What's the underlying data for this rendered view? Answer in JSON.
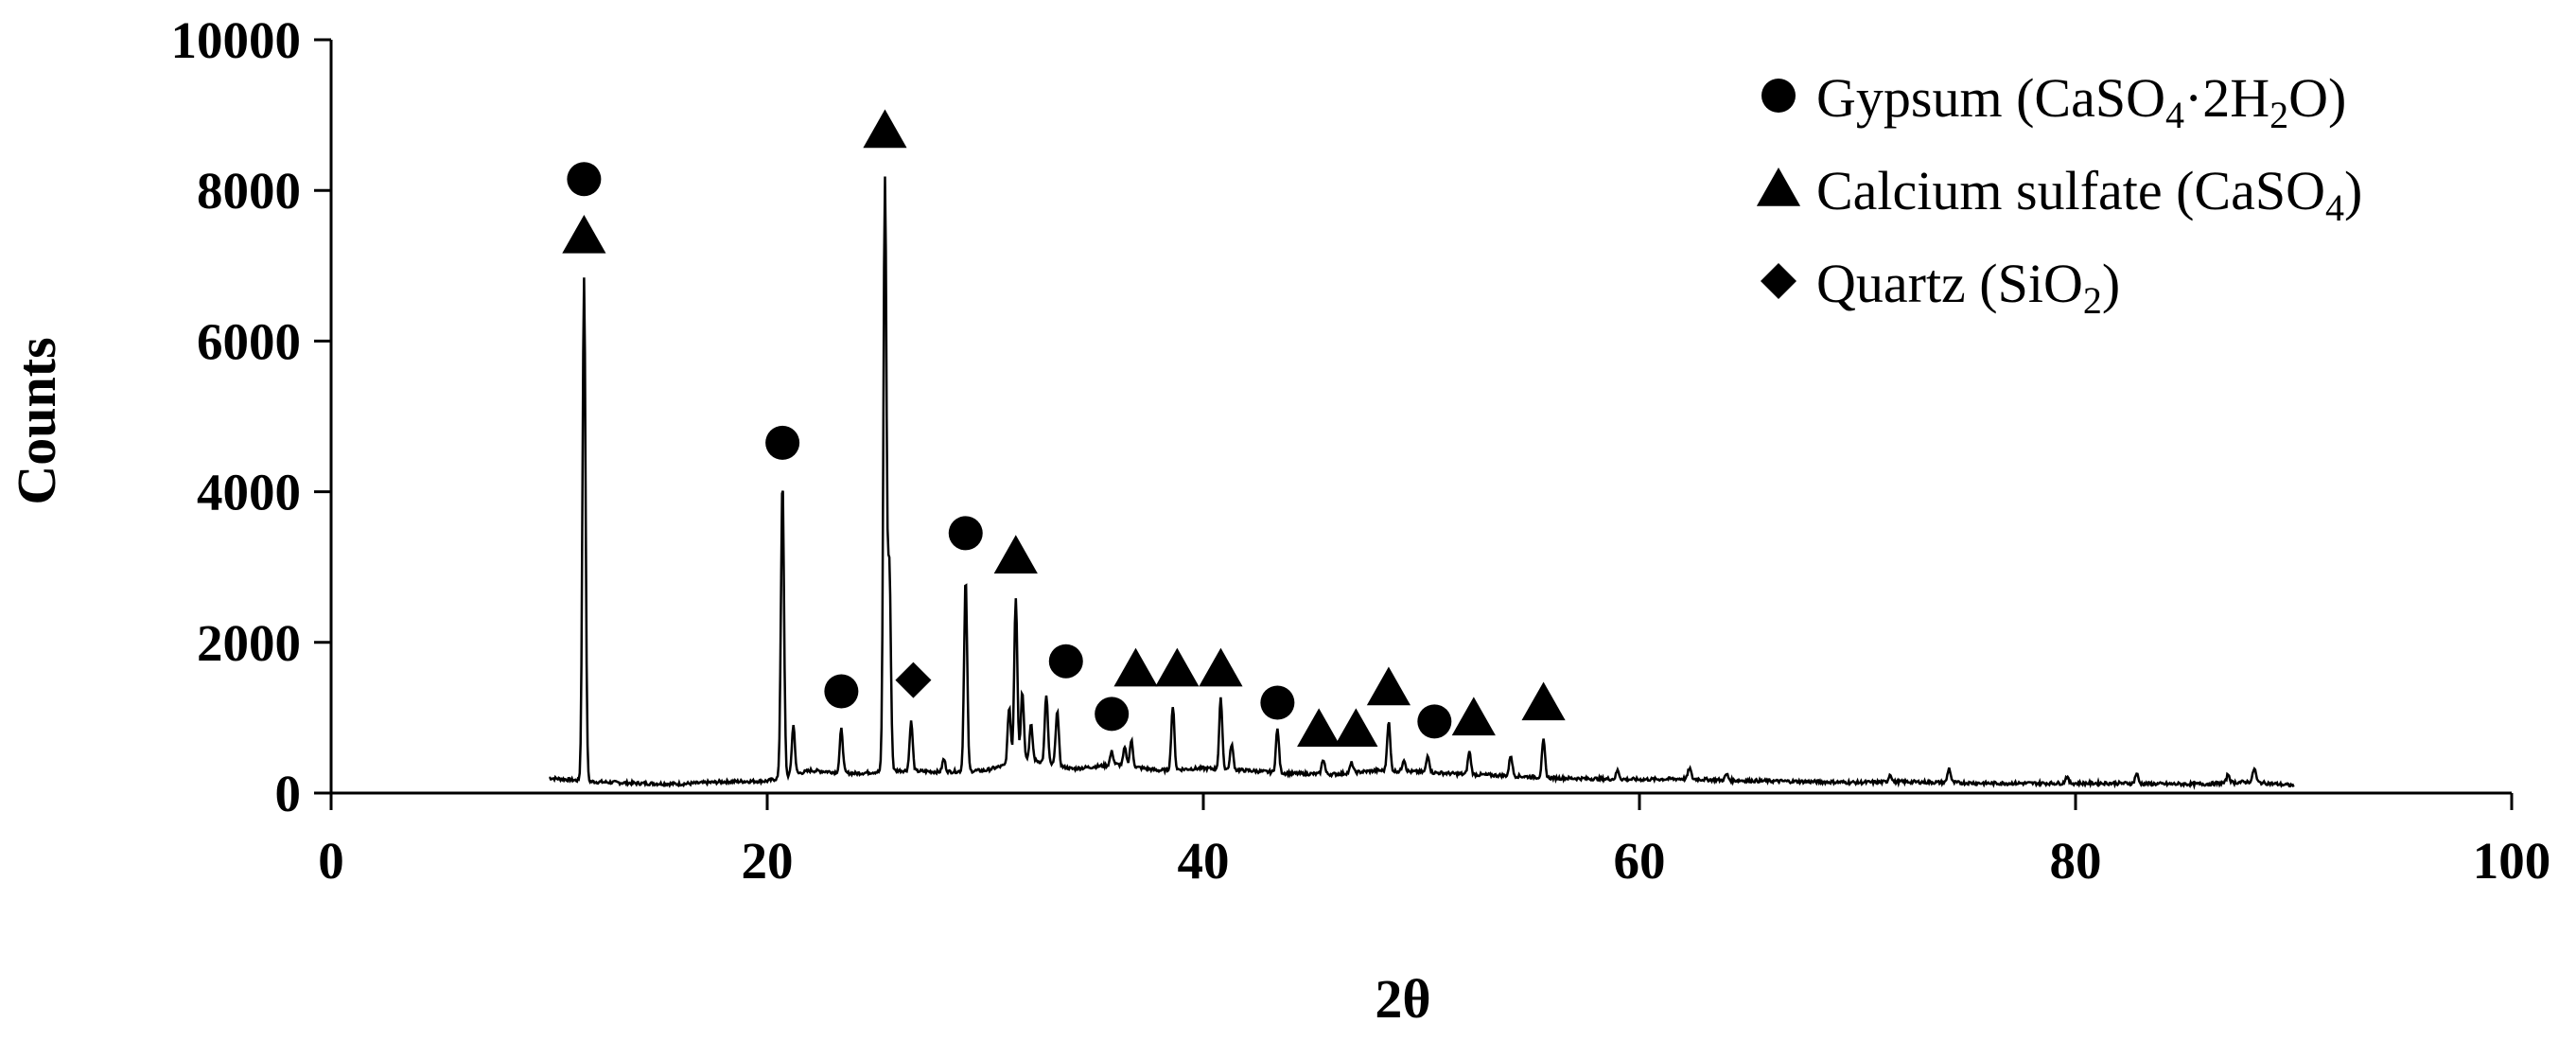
{
  "chart_data": {
    "type": "line",
    "title": "",
    "xlabel": "2θ",
    "ylabel": "Counts",
    "xlim": [
      0,
      100
    ],
    "ylim": [
      0,
      10000
    ],
    "x_ticks": [
      0,
      20,
      40,
      60,
      80,
      100
    ],
    "y_ticks": [
      0,
      2000,
      4000,
      6000,
      8000,
      10000
    ],
    "grid": false,
    "legend_position": "top-right",
    "line_color": "#000000",
    "baseline": [
      [
        10,
        200
      ],
      [
        12,
        150
      ],
      [
        14,
        130
      ],
      [
        16,
        120
      ],
      [
        18,
        150
      ],
      [
        20,
        160
      ],
      [
        22,
        300
      ],
      [
        24,
        260
      ],
      [
        26,
        300
      ],
      [
        28,
        280
      ],
      [
        30,
        300
      ],
      [
        32,
        450
      ],
      [
        34,
        320
      ],
      [
        36,
        380
      ],
      [
        38,
        300
      ],
      [
        40,
        330
      ],
      [
        42,
        300
      ],
      [
        44,
        260
      ],
      [
        46,
        250
      ],
      [
        48,
        300
      ],
      [
        50,
        280
      ],
      [
        52,
        250
      ],
      [
        54,
        230
      ],
      [
        56,
        200
      ],
      [
        58,
        190
      ],
      [
        60,
        180
      ],
      [
        62,
        190
      ],
      [
        64,
        170
      ],
      [
        66,
        160
      ],
      [
        68,
        150
      ],
      [
        70,
        140
      ],
      [
        72,
        150
      ],
      [
        74,
        140
      ],
      [
        76,
        130
      ],
      [
        78,
        130
      ],
      [
        80,
        130
      ],
      [
        82,
        130
      ],
      [
        84,
        120
      ],
      [
        86,
        120
      ],
      [
        88,
        150
      ],
      [
        90,
        100
      ]
    ],
    "peaks": [
      {
        "x": 11.6,
        "y": 6850
      },
      {
        "x": 20.7,
        "y": 4150
      },
      {
        "x": 21.2,
        "y": 900
      },
      {
        "x": 23.4,
        "y": 850
      },
      {
        "x": 25.4,
        "y": 8150
      },
      {
        "x": 25.6,
        "y": 3000
      },
      {
        "x": 26.6,
        "y": 950
      },
      {
        "x": 28.1,
        "y": 450
      },
      {
        "x": 29.1,
        "y": 2850
      },
      {
        "x": 31.1,
        "y": 1150
      },
      {
        "x": 31.4,
        "y": 2600
      },
      {
        "x": 31.7,
        "y": 1350
      },
      {
        "x": 32.1,
        "y": 900
      },
      {
        "x": 32.8,
        "y": 1300
      },
      {
        "x": 33.3,
        "y": 1100
      },
      {
        "x": 35.8,
        "y": 550
      },
      {
        "x": 36.4,
        "y": 600
      },
      {
        "x": 36.7,
        "y": 700
      },
      {
        "x": 38.6,
        "y": 1150
      },
      {
        "x": 40.8,
        "y": 1250
      },
      {
        "x": 41.3,
        "y": 650
      },
      {
        "x": 43.4,
        "y": 850
      },
      {
        "x": 45.5,
        "y": 450
      },
      {
        "x": 46.8,
        "y": 400
      },
      {
        "x": 48.5,
        "y": 950
      },
      {
        "x": 49.2,
        "y": 450
      },
      {
        "x": 50.3,
        "y": 500
      },
      {
        "x": 52.2,
        "y": 550
      },
      {
        "x": 54.1,
        "y": 500
      },
      {
        "x": 55.6,
        "y": 700
      },
      {
        "x": 59.0,
        "y": 300
      },
      {
        "x": 62.3,
        "y": 330
      },
      {
        "x": 64.0,
        "y": 250
      },
      {
        "x": 71.5,
        "y": 250
      },
      {
        "x": 74.2,
        "y": 330
      },
      {
        "x": 79.6,
        "y": 220
      },
      {
        "x": 82.8,
        "y": 260
      },
      {
        "x": 87.0,
        "y": 250
      },
      {
        "x": 88.2,
        "y": 330
      }
    ],
    "legend": [
      {
        "marker": "circle",
        "label": "Gypsum (CaSO",
        "sub1": "4",
        "mid": "·2H",
        "sub2": "2",
        "tail": "O)"
      },
      {
        "marker": "triangle",
        "label": "Calcium sulfate (CaSO",
        "sub1": "4",
        "mid": ")",
        "sub2": "",
        "tail": ""
      },
      {
        "marker": "diamond",
        "label": "Quartz (SiO",
        "sub1": "2",
        "mid": ")",
        "sub2": "",
        "tail": ""
      }
    ],
    "annotations": [
      {
        "marker": "circle",
        "x": 11.6,
        "y": 8150
      },
      {
        "marker": "triangle",
        "x": 11.6,
        "y": 7400
      },
      {
        "marker": "circle",
        "x": 20.7,
        "y": 4650
      },
      {
        "marker": "circle",
        "x": 23.4,
        "y": 1350
      },
      {
        "marker": "triangle",
        "x": 25.4,
        "y": 8800
      },
      {
        "marker": "diamond",
        "x": 26.7,
        "y": 1500
      },
      {
        "marker": "circle",
        "x": 29.1,
        "y": 3450
      },
      {
        "marker": "triangle",
        "x": 31.4,
        "y": 3150
      },
      {
        "marker": "circle",
        "x": 33.7,
        "y": 1750
      },
      {
        "marker": "circle",
        "x": 35.8,
        "y": 1050
      },
      {
        "marker": "triangle",
        "x": 36.9,
        "y": 1650
      },
      {
        "marker": "triangle",
        "x": 38.8,
        "y": 1650
      },
      {
        "marker": "triangle",
        "x": 40.8,
        "y": 1650
      },
      {
        "marker": "circle",
        "x": 43.4,
        "y": 1200
      },
      {
        "marker": "triangle",
        "x": 45.3,
        "y": 850
      },
      {
        "marker": "triangle",
        "x": 47.0,
        "y": 850
      },
      {
        "marker": "triangle",
        "x": 48.5,
        "y": 1400
      },
      {
        "marker": "circle",
        "x": 50.6,
        "y": 950
      },
      {
        "marker": "triangle",
        "x": 52.4,
        "y": 1000
      },
      {
        "marker": "triangle",
        "x": 55.6,
        "y": 1200
      }
    ]
  }
}
